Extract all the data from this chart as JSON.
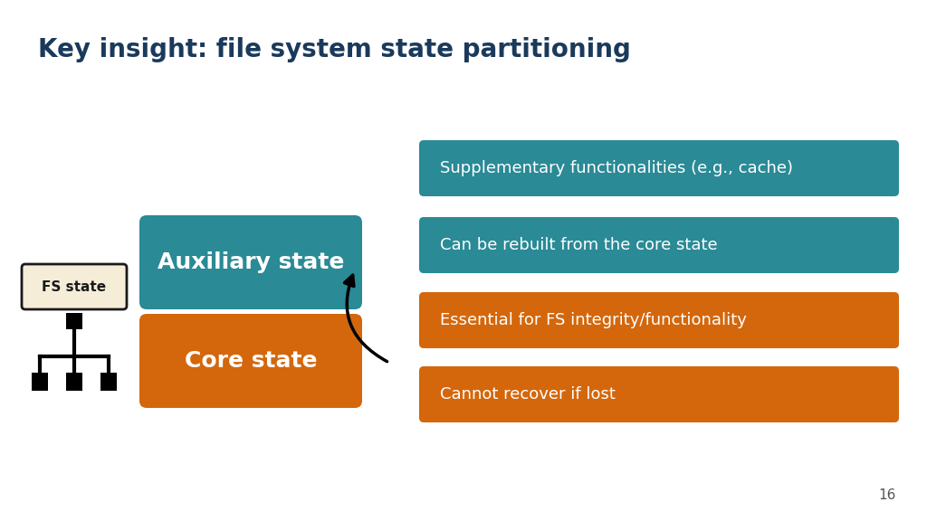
{
  "title": "Key insight: file system state partitioning",
  "title_color": "#1a3a5c",
  "title_fontsize": 20,
  "background_color": "#ffffff",
  "teal_color": "#2a8a96",
  "orange_color": "#d4670c",
  "fs_state_label": "FS state",
  "auxiliary_label": "Auxiliary state",
  "core_label": "Core state",
  "teal_bullets": [
    "Supplementary functionalities (e.g., cache)",
    "Can be rebuilt from the core state"
  ],
  "orange_bullets": [
    "Essential for FS integrity/functionality",
    "Cannot recover if lost"
  ],
  "page_number": "16",
  "text_color_white": "#ffffff",
  "text_color_dark": "#1a1a1a",
  "fs_box_color": "#f5edd8",
  "fs_box_border": "#1a1a1a"
}
